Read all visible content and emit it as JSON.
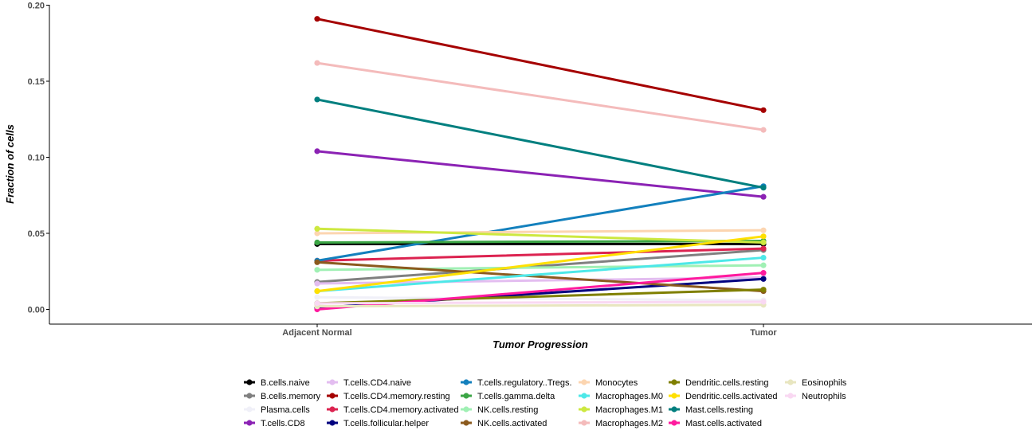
{
  "chart_data": {
    "type": "line",
    "title": "",
    "xlabel": "Tumor Progression",
    "ylabel": "Fraction of cells",
    "categories": [
      "Adjacent Normal",
      "Tumor"
    ],
    "ylim": [
      0,
      0.2
    ],
    "yticks": [
      "0.00",
      "0.05",
      "0.10",
      "0.15",
      "0.20"
    ],
    "grid": false,
    "legend_position": "bottom",
    "series": [
      {
        "name": "B.cells.naive",
        "color": "#000000",
        "values": [
          0.043,
          0.043
        ]
      },
      {
        "name": "B.cells.memory",
        "color": "#808080",
        "values": [
          0.018,
          0.039
        ]
      },
      {
        "name": "Plasma.cells",
        "color": "#F0F0F8",
        "values": [
          0.008,
          0.006
        ]
      },
      {
        "name": "T.cells.CD8",
        "color": "#8B22B4",
        "values": [
          0.104,
          0.074
        ]
      },
      {
        "name": "T.cells.CD4.naive",
        "color": "#E3BDF0",
        "values": [
          0.017,
          0.021
        ]
      },
      {
        "name": "T.cells.CD4.memory.resting",
        "color": "#A50000",
        "values": [
          0.191,
          0.131
        ]
      },
      {
        "name": "T.cells.CD4.memory.activated",
        "color": "#DC2350",
        "values": [
          0.032,
          0.04
        ]
      },
      {
        "name": "T.cells.follicular.helper",
        "color": "#00007F",
        "values": [
          0.001,
          0.02
        ]
      },
      {
        "name": "T.cells.regulatory..Tregs.",
        "color": "#1380BD",
        "values": [
          0.032,
          0.081
        ]
      },
      {
        "name": "T.cells.gamma.delta",
        "color": "#3BA545",
        "values": [
          0.044,
          0.045
        ]
      },
      {
        "name": "NK.cells.resting",
        "color": "#A0F0B4",
        "values": [
          0.026,
          0.029
        ]
      },
      {
        "name": "NK.cells.activated",
        "color": "#8B5A1E",
        "values": [
          0.031,
          0.012
        ]
      },
      {
        "name": "Monocytes",
        "color": "#FCD5B0",
        "values": [
          0.05,
          0.052
        ]
      },
      {
        "name": "Macrophages.M0",
        "color": "#4DE8E8",
        "values": [
          0.012,
          0.034
        ]
      },
      {
        "name": "Macrophages.M1",
        "color": "#CDE840",
        "values": [
          0.053,
          0.044
        ]
      },
      {
        "name": "Macrophages.M2",
        "color": "#F4BBBB",
        "values": [
          0.162,
          0.118
        ]
      },
      {
        "name": "Dendritic.cells.resting",
        "color": "#7F7F00",
        "values": [
          0.004,
          0.013
        ]
      },
      {
        "name": "Dendritic.cells.activated",
        "color": "#FFE000",
        "values": [
          0.012,
          0.048
        ]
      },
      {
        "name": "Mast.cells.resting",
        "color": "#007F7F",
        "values": [
          0.138,
          0.08
        ]
      },
      {
        "name": "Mast.cells.activated",
        "color": "#FF1A9E",
        "values": [
          0.0,
          0.024
        ]
      },
      {
        "name": "Eosinophils",
        "color": "#E8E6C0",
        "values": [
          0.002,
          0.003
        ]
      },
      {
        "name": "Neutrophils",
        "color": "#F9D8F2",
        "values": [
          0.004,
          0.005
        ]
      }
    ]
  }
}
